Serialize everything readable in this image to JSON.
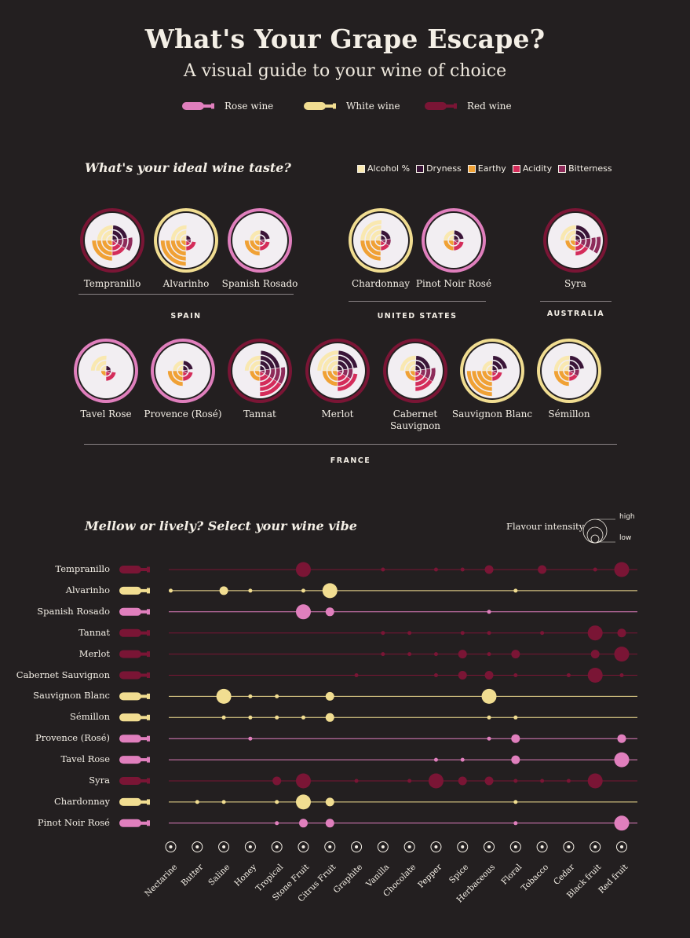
{
  "title": "What's Your Grape Escape?",
  "subtitle": "A visual guide to your wine of choice",
  "wine_legend": [
    {
      "label": "Rose wine",
      "color": "#e07fbd"
    },
    {
      "label": "White wine",
      "color": "#f1dd91"
    },
    {
      "label": "Red wine",
      "color": "#7a1535"
    }
  ],
  "taste_section": {
    "heading": "What's your ideal wine taste?",
    "legend": [
      {
        "label": "Alcohol %",
        "color": "#f9e8b0"
      },
      {
        "label": "Dryness",
        "color": "#3a1538"
      },
      {
        "label": "Earthy",
        "color": "#f0a135"
      },
      {
        "label": "Acidity",
        "color": "#d42c5a"
      },
      {
        "label": "Bitterness",
        "color": "#8e2b5a"
      }
    ]
  },
  "flavor_section": {
    "heading": "Mellow or lively? Select your wine vibe",
    "intensity_title": "Flavour intensity",
    "intensity_high": "high",
    "intensity_low": "low"
  },
  "chart_data": [
    {
      "type": "radial",
      "title": "What's your ideal wine taste?",
      "dimensions": [
        "Alcohol %",
        "Dryness",
        "Earthy",
        "Acidity",
        "Bitterness"
      ],
      "regions": [
        {
          "name": "SPAIN",
          "wines": [
            {
              "name": "Tempranillo",
              "kind": "red",
              "values": [
                3,
                3,
                4,
                3,
                4
              ]
            },
            {
              "name": "Alvarinho",
              "kind": "white",
              "values": [
                3,
                1,
                5,
                2,
                1
              ]
            },
            {
              "name": "Spanish Rosado",
              "kind": "rose",
              "values": [
                2,
                2,
                3,
                2,
                1
              ]
            }
          ]
        },
        {
          "name": "UNITED STATES",
          "wines": [
            {
              "name": "Chardonnay",
              "kind": "white",
              "values": [
                4,
                2,
                4,
                2,
                2
              ]
            },
            {
              "name": "Pinot Noir Rosé",
              "kind": "rose",
              "values": [
                2,
                2,
                2,
                2,
                1
              ]
            }
          ]
        },
        {
          "name": "AUSTRALIA",
          "wines": [
            {
              "name": "Syra",
              "kind": "red",
              "values": [
                3,
                3,
                2,
                3,
                5
              ]
            }
          ]
        },
        {
          "name": "FRANCE",
          "wines": [
            {
              "name": "Tavel Rose",
              "kind": "rose",
              "values": [
                3,
                1,
                1,
                2,
                1
              ]
            },
            {
              "name": "Provence (Rosé)",
              "kind": "rose",
              "values": [
                2,
                2,
                3,
                2,
                1
              ]
            },
            {
              "name": "Tannat",
              "kind": "red",
              "values": [
                3,
                4,
                2,
                5,
                5
              ]
            },
            {
              "name": "Merlot",
              "kind": "red",
              "values": [
                4,
                4,
                3,
                4,
                3
              ]
            },
            {
              "name": "Cabernet Sauvignon",
              "kind": "red",
              "values": [
                3,
                3,
                2,
                4,
                4
              ]
            },
            {
              "name": "Sauvignon Blanc",
              "kind": "white",
              "values": [
                2,
                3,
                5,
                2,
                1
              ]
            },
            {
              "name": "Sémillon",
              "kind": "white",
              "values": [
                3,
                3,
                3,
                2,
                2
              ]
            }
          ]
        }
      ]
    },
    {
      "type": "scatter",
      "title": "Mellow or lively? Select your wine vibe",
      "notes": [
        "Nectarine",
        "Butter",
        "Saline",
        "Honey",
        "Tropical",
        "Stone Fruit",
        "Citrus Fruit",
        "Graphite",
        "Vanilla",
        "Chocolate",
        "Pepper",
        "Spice",
        "Herbaceous",
        "Floral",
        "Tobacco",
        "Cedar",
        "Black fruit",
        "Red fruit"
      ],
      "size_legend": "Flavour intensity",
      "rows": [
        {
          "name": "Tempranillo",
          "kind": "red",
          "values": [
            0,
            0,
            0,
            0,
            0,
            4,
            0,
            0,
            1,
            0,
            1,
            1,
            2,
            0,
            2,
            0,
            1,
            4
          ]
        },
        {
          "name": "Alvarinho",
          "kind": "white",
          "values": [
            1,
            0,
            2,
            1,
            0,
            1,
            4,
            0,
            0,
            0,
            0,
            0,
            0,
            1,
            0,
            0,
            0,
            0
          ]
        },
        {
          "name": "Spanish Rosado",
          "kind": "rose",
          "values": [
            0,
            0,
            0,
            0,
            0,
            4,
            2,
            0,
            0,
            0,
            0,
            0,
            1,
            0,
            0,
            0,
            0,
            0
          ]
        },
        {
          "name": "Tannat",
          "kind": "red",
          "values": [
            0,
            0,
            0,
            0,
            0,
            0,
            0,
            0,
            1,
            1,
            0,
            1,
            1,
            0,
            1,
            0,
            4,
            2
          ]
        },
        {
          "name": "Merlot",
          "kind": "red",
          "values": [
            0,
            0,
            0,
            0,
            0,
            0,
            0,
            0,
            1,
            1,
            1,
            2,
            1,
            2,
            0,
            0,
            2,
            4
          ]
        },
        {
          "name": "Cabernet Sauvignon",
          "kind": "red",
          "values": [
            0,
            0,
            0,
            0,
            0,
            0,
            0,
            1,
            0,
            0,
            1,
            2,
            2,
            1,
            0,
            1,
            4,
            1
          ]
        },
        {
          "name": "Sauvignon Blanc",
          "kind": "white",
          "values": [
            0,
            0,
            4,
            1,
            1,
            0,
            2,
            0,
            0,
            0,
            0,
            0,
            4,
            0,
            0,
            0,
            0,
            0
          ]
        },
        {
          "name": "Sémillon",
          "kind": "white",
          "values": [
            0,
            0,
            1,
            1,
            1,
            1,
            2,
            0,
            0,
            0,
            0,
            0,
            1,
            1,
            0,
            0,
            0,
            0
          ]
        },
        {
          "name": "Provence (Rosé)",
          "kind": "rose",
          "values": [
            0,
            0,
            0,
            1,
            0,
            0,
            0,
            0,
            0,
            0,
            0,
            0,
            1,
            2,
            0,
            0,
            0,
            2
          ]
        },
        {
          "name": "Tavel Rose",
          "kind": "rose",
          "values": [
            0,
            0,
            0,
            0,
            0,
            0,
            0,
            0,
            0,
            0,
            1,
            1,
            0,
            2,
            0,
            0,
            0,
            4
          ]
        },
        {
          "name": "Syra",
          "kind": "red",
          "values": [
            0,
            0,
            0,
            0,
            2,
            4,
            0,
            1,
            0,
            1,
            4,
            2,
            2,
            1,
            1,
            1,
            4,
            0
          ]
        },
        {
          "name": "Chardonnay",
          "kind": "white",
          "values": [
            0,
            1,
            1,
            0,
            1,
            4,
            2,
            0,
            0,
            0,
            0,
            0,
            0,
            1,
            0,
            0,
            0,
            0
          ]
        },
        {
          "name": "Pinot Noir Rosé",
          "kind": "rose",
          "values": [
            0,
            0,
            0,
            0,
            1,
            2,
            2,
            0,
            0,
            0,
            0,
            0,
            0,
            1,
            0,
            0,
            0,
            4
          ]
        }
      ]
    }
  ]
}
